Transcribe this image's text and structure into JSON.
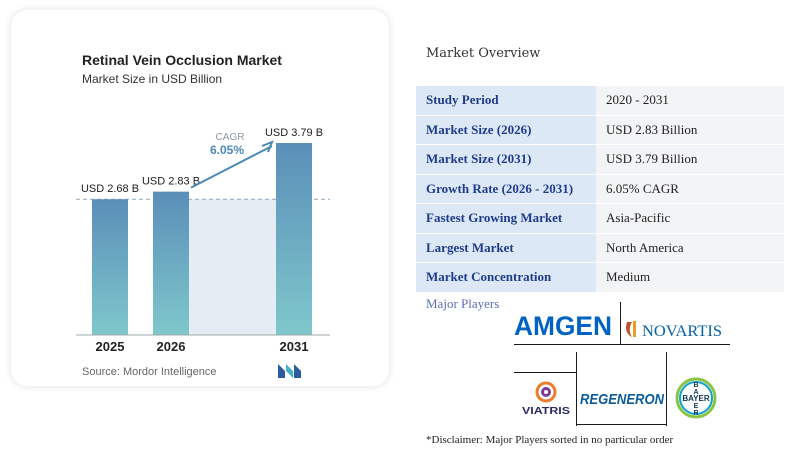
{
  "chart": {
    "title": "Retinal Vein Occlusion Market",
    "subtitle": "Market Size in USD Billion",
    "source": "Source: Mordor Intelligence",
    "cagr_label": "CAGR",
    "cagr_value": "6.05%"
  },
  "chart_data": {
    "type": "bar",
    "title": "Retinal Vein Occlusion Market",
    "subtitle": "Market Size in USD Billion",
    "categories": [
      "2025",
      "2026",
      "2031"
    ],
    "values": [
      2.68,
      2.83,
      3.79
    ],
    "data_labels": [
      "USD 2.68 B",
      "USD 2.83 B",
      "USD 3.79 B"
    ],
    "annotation": "CAGR 6.05%",
    "ylim": [
      0,
      3.79
    ],
    "grid": false,
    "colors": {
      "bar_top": "#5a8fb8",
      "bar_bottom": "#7fc7cc",
      "accent": "#4a8ab8",
      "shade": "#e4ecf4"
    }
  },
  "overview": {
    "title": "Market Overview",
    "rows": [
      {
        "key": "Study Period",
        "value": "2020 - 2031"
      },
      {
        "key": "Market Size (2026)",
        "value": "USD 2.83 Billion"
      },
      {
        "key": "Market Size (2031)",
        "value": "USD 3.79 Billion"
      },
      {
        "key": "Growth Rate (2026 - 2031)",
        "value": "6.05% CAGR"
      },
      {
        "key": "Fastest Growing Market",
        "value": "Asia-Pacific"
      },
      {
        "key": "Largest Market",
        "value": "North America"
      },
      {
        "key": "Market Concentration",
        "value": "Medium"
      }
    ]
  },
  "players": {
    "title": "Major Players",
    "logos": {
      "amgen": "AMGEN",
      "novartis": "NOVARTIS",
      "viatris": "VIATRIS",
      "regeneron": "REGENERON",
      "bayer": "BAYER"
    },
    "disclaimer": "*Disclaimer: Major Players sorted in no particular order"
  }
}
